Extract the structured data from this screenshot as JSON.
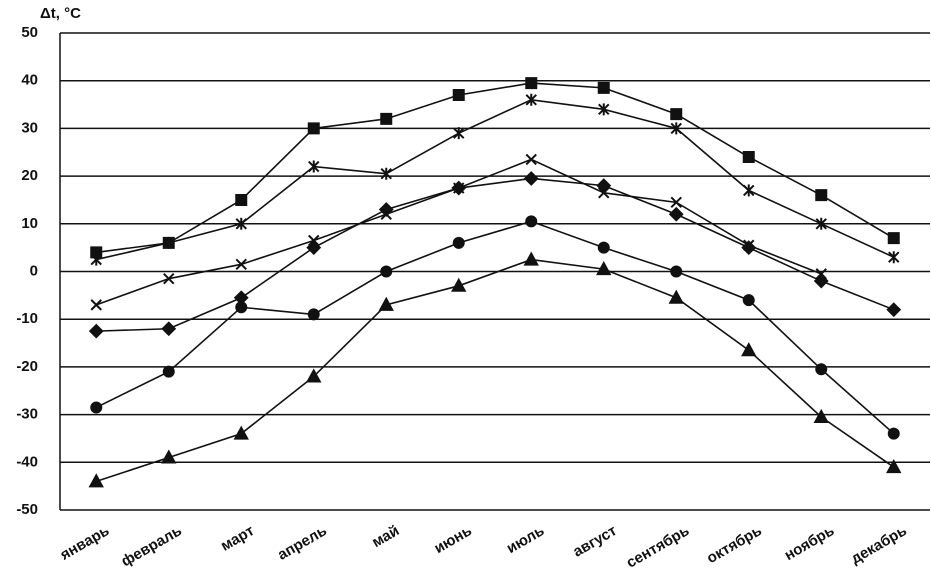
{
  "chart_data": {
    "type": "line",
    "ylabel": "Δt, °C",
    "categories": [
      "январь",
      "февраль",
      "март",
      "апрель",
      "май",
      "июнь",
      "июль",
      "август",
      "сентябрь",
      "октябрь",
      "ноябрь",
      "декабрь"
    ],
    "series": [
      {
        "marker": "square",
        "color": "#111111",
        "values": [
          4,
          6,
          15,
          30,
          32,
          37,
          39.5,
          38.5,
          33,
          24,
          16,
          7
        ]
      },
      {
        "marker": "asterisk",
        "color": "#111111",
        "values": [
          2.5,
          6,
          10,
          22,
          20.5,
          29,
          36,
          34,
          30,
          17,
          10,
          3
        ]
      },
      {
        "marker": "x",
        "color": "#111111",
        "values": [
          -7,
          -1.5,
          1.5,
          6.5,
          12,
          17.5,
          23.5,
          16.5,
          14.5,
          5.5,
          -0.5,
          null
        ]
      },
      {
        "marker": "diamond",
        "color": "#111111",
        "values": [
          -12.5,
          -12,
          -5.5,
          5,
          13,
          17.5,
          19.5,
          18,
          12,
          5,
          -2,
          -8
        ]
      },
      {
        "marker": "circle",
        "color": "#111111",
        "values": [
          -28.5,
          -21,
          -7.5,
          -9,
          0,
          6,
          10.5,
          5,
          0,
          -6,
          -20.5,
          -34
        ]
      },
      {
        "marker": "triangle",
        "color": "#111111",
        "values": [
          -44,
          -39,
          -34,
          -22,
          -7,
          -3,
          2.5,
          0.5,
          -5.5,
          -16.5,
          -30.5,
          -41
        ]
      }
    ],
    "ylim": [
      -50,
      50
    ],
    "yticks": [
      -50,
      -40,
      -30,
      -20,
      -10,
      0,
      10,
      20,
      30,
      40,
      50
    ],
    "grid": true
  }
}
